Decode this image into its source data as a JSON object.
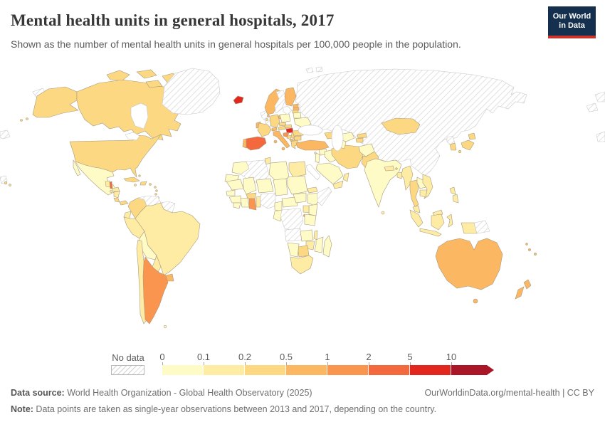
{
  "header": {
    "title": "Mental health units in general hospitals, 2017",
    "subtitle": "Shown as the number of mental health units in general hospitals per 100,000 people in the population.",
    "logo": {
      "line1": "Our World",
      "line2": "in Data",
      "bg_color": "#15304e",
      "bar_color": "#c9342c"
    }
  },
  "footer": {
    "data_source_label": "Data source:",
    "data_source_value": " World Health Organization - Global Health Observatory (2025)",
    "link_text": "OurWorldinData.org/mental-health | CC BY",
    "note_label": "Note:",
    "note_value": " Data points are taken as single-year observations between 2013 and 2017, depending on the country."
  },
  "chart_data": {
    "type": "choropleth-world-map",
    "title": "Mental health units in general hospitals, 2017",
    "unit": "mental health units in general hospitals per 100,000 people",
    "year": "2017",
    "legend": {
      "no_data_label": "No data",
      "tick_labels": [
        "0",
        "0.1",
        "0.2",
        "0.5",
        "1",
        "2",
        "5",
        "10"
      ],
      "bucket_ranges": [
        "0-0.1",
        "0.1-0.2",
        "0.2-0.5",
        "0.5-1",
        "1-2",
        "2-5",
        "5-10",
        "10+"
      ],
      "colors": [
        "#FEFBC6",
        "#FEECA4",
        "#FDD883",
        "#FCB762",
        "#FA9550",
        "#F3683C",
        "#E2271F",
        "#A91628"
      ],
      "open_ended_max": true,
      "border_color_data": "#a89b80",
      "border_color_nodata": "#c9c9c9"
    },
    "countries_by_bucket": {
      "b0": [
        "mexico",
        "bolivia",
        "falkland-islands",
        "poland",
        "belarus",
        "ukraine",
        "moldova",
        "morocco",
        "western-sahara",
        "libya",
        "mauritania",
        "mali",
        "niger",
        "chad",
        "sudan",
        "south-sudan",
        "senegal",
        "guinea",
        "sierra-leone",
        "ivory-coast",
        "cameroon",
        "central-african-republic",
        "congo",
        "ethiopia",
        "kenya",
        "tanzania",
        "zambia",
        "mozambique",
        "namibia",
        "madagascar",
        "saudi-arabia",
        "iraq",
        "syria",
        "levant",
        "cyprus",
        "afghanistan",
        "uzbekistan",
        "turkmenistan",
        "india",
        "laos"
      ],
      "b1": [
        "guatemala",
        "el-salvador",
        "honduras",
        "nicaragua",
        "ecuador",
        "peru",
        "brazil",
        "paraguay",
        "chile",
        "tunisia",
        "egypt",
        "eritrea",
        "togo-benin",
        "uganda",
        "malawi",
        "zimbabwe",
        "south-africa",
        "yemen",
        "oman",
        "nepal",
        "bangladesh",
        "sri-lanka",
        "myanmar",
        "vietnam",
        "cambodia",
        "malaysia",
        "indonesia",
        "west-papua",
        "philippines"
      ],
      "b2": [
        "usa",
        "canada",
        "cuba",
        "jamaica",
        "hispaniola",
        "puerto-rico",
        "lesser-antilles",
        "bahamas",
        "trinidad",
        "costa-rica",
        "panama",
        "colombia",
        "france",
        "belgium",
        "germany",
        "czechia",
        "austria",
        "slovakia",
        "romania",
        "bulgaria",
        "serbia",
        "bosnia",
        "north-macedonia",
        "greece",
        "lithuania",
        "caucasus",
        "iran",
        "pakistan",
        "kyrgyzstan",
        "tajikistan",
        "mongolia",
        "japan",
        "south-korea",
        "thailand",
        "burkina-faso",
        "botswana",
        "bhutan"
      ],
      "b3": [
        "ireland",
        "portugal",
        "norway",
        "finland",
        "denmark",
        "netherlands",
        "switzerland",
        "estonia",
        "latvia",
        "italy",
        "albania",
        "turkey",
        "uruguay",
        "australia",
        "new-zealand",
        "fiji",
        "new-caledonia",
        "vanuatu"
      ],
      "b4": [
        "argentina",
        "ghana",
        "croatia",
        "rwanda"
      ],
      "b5": [
        "spain",
        "belize"
      ],
      "b6": [
        "iceland",
        "hungary"
      ],
      "b7": [],
      "no_data": [
        "greenland",
        "russia-china-kazakhstan",
        "chukotka",
        "uk",
        "sweden",
        "venezuela",
        "guyana-suriname",
        "algeria",
        "nigeria",
        "drc",
        "angola",
        "somalia",
        "north-korea",
        "papua-new-guinea",
        "svalbard",
        "pacific-fragment-1",
        "pacific-fragment-2",
        "pacific-fragment-3",
        "left-fragment-1",
        "left-fragment-2"
      ]
    }
  }
}
